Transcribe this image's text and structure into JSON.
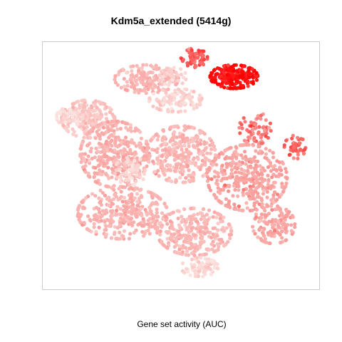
{
  "chart_data": {
    "type": "scatter",
    "title": "Kdm5a_extended (5414g)",
    "xlabel": "Gene set activity (AUC)",
    "ylabel": "",
    "grid": false,
    "legend": "none",
    "color_scale": {
      "low": "#fbe3e0",
      "mid": "#f89b98",
      "high": "#ff0000"
    },
    "clusters": [
      {
        "cx": 0.7,
        "cy": 0.88,
        "rx": 0.09,
        "ry": 0.05,
        "activity": 0.95,
        "n": 220
      },
      {
        "cx": 0.55,
        "cy": 0.96,
        "rx": 0.05,
        "ry": 0.04,
        "activity": 0.7,
        "n": 70
      },
      {
        "cx": 0.78,
        "cy": 0.66,
        "rx": 0.06,
        "ry": 0.07,
        "activity": 0.6,
        "n": 70
      },
      {
        "cx": 0.93,
        "cy": 0.58,
        "rx": 0.04,
        "ry": 0.05,
        "activity": 0.65,
        "n": 45
      },
      {
        "cx": 0.37,
        "cy": 0.87,
        "rx": 0.12,
        "ry": 0.06,
        "activity": 0.3,
        "n": 170
      },
      {
        "cx": 0.48,
        "cy": 0.78,
        "rx": 0.1,
        "ry": 0.05,
        "activity": 0.1,
        "n": 120
      },
      {
        "cx": 0.15,
        "cy": 0.7,
        "rx": 0.1,
        "ry": 0.08,
        "activity": 0.2,
        "n": 220
      },
      {
        "cx": 0.25,
        "cy": 0.55,
        "rx": 0.13,
        "ry": 0.14,
        "activity": 0.35,
        "n": 380
      },
      {
        "cx": 0.5,
        "cy": 0.55,
        "rx": 0.13,
        "ry": 0.12,
        "activity": 0.3,
        "n": 340
      },
      {
        "cx": 0.75,
        "cy": 0.45,
        "rx": 0.15,
        "ry": 0.14,
        "activity": 0.42,
        "n": 380
      },
      {
        "cx": 0.28,
        "cy": 0.3,
        "rx": 0.17,
        "ry": 0.11,
        "activity": 0.33,
        "n": 340
      },
      {
        "cx": 0.55,
        "cy": 0.22,
        "rx": 0.14,
        "ry": 0.1,
        "activity": 0.3,
        "n": 280
      },
      {
        "cx": 0.85,
        "cy": 0.25,
        "rx": 0.08,
        "ry": 0.08,
        "activity": 0.4,
        "n": 130
      },
      {
        "cx": 0.57,
        "cy": 0.07,
        "rx": 0.07,
        "ry": 0.04,
        "activity": 0.08,
        "n": 80
      },
      {
        "cx": 0.08,
        "cy": 0.71,
        "rx": 0.05,
        "ry": 0.04,
        "activity": 0.05,
        "n": 50
      },
      {
        "cx": 0.31,
        "cy": 0.48,
        "rx": 0.06,
        "ry": 0.06,
        "activity": 0.08,
        "n": 60
      },
      {
        "cx": 0.47,
        "cy": 0.88,
        "rx": 0.05,
        "ry": 0.04,
        "activity": 0.15,
        "n": 50
      }
    ]
  }
}
